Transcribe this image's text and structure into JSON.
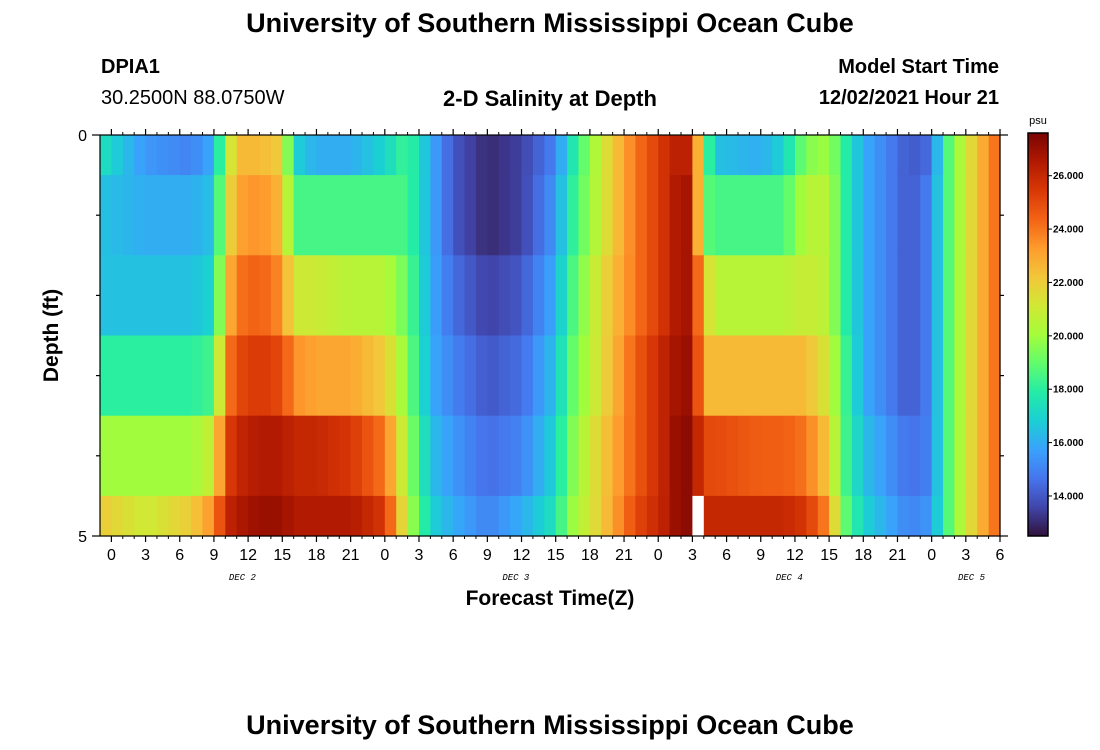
{
  "header": {
    "title": "University of Southern Mississippi Ocean Cube",
    "station": "DPIA1",
    "coords": "30.2500N  88.0750W",
    "subtitle": "2-D Salinity at Depth",
    "start_label": "Model Start Time",
    "start_value": "12/02/2021 Hour 21"
  },
  "footer": {
    "title": "University of Southern Mississippi Ocean Cube"
  },
  "chart_data": {
    "type": "heatmap",
    "title": "2-D Salinity at Depth",
    "xlabel": "Forecast Time(Z)",
    "ylabel": "Depth (ft)",
    "x_start_hour": -1,
    "x_end_hour": 78,
    "x_ticks": [
      "0",
      "3",
      "6",
      "9",
      "12",
      "15",
      "18",
      "21",
      "0",
      "3",
      "6",
      "9",
      "12",
      "15",
      "18",
      "21",
      "0",
      "3",
      "6",
      "9",
      "12",
      "15",
      "18",
      "21",
      "0",
      "3",
      "6"
    ],
    "day_labels": [
      {
        "text": "DEC 2",
        "hour": 11.5
      },
      {
        "text": "DEC 3",
        "hour": 35.5
      },
      {
        "text": "DEC 4",
        "hour": 59.5
      },
      {
        "text": "DEC 5",
        "hour": 75.5
      }
    ],
    "y_ticks": [
      "0",
      "5"
    ],
    "y_range_ft": [
      0,
      5
    ],
    "depth_bands_ft": [
      [
        0,
        0.5
      ],
      [
        0.5,
        1.5
      ],
      [
        1.5,
        2.5
      ],
      [
        2.5,
        3.5
      ],
      [
        3.5,
        4.5
      ],
      [
        4.5,
        5
      ]
    ],
    "colorbar": {
      "unit": "psu",
      "min": 12.5,
      "max": 27.6,
      "labels": [
        "26.000",
        "24.000",
        "22.000",
        "20.000",
        "18.000",
        "16.000",
        "14.000"
      ],
      "label_values": [
        26,
        24,
        22,
        20,
        18,
        16,
        14
      ]
    },
    "salinity_keyframes": [
      {
        "hour": -1,
        "levels": [
          17.5,
          16.5,
          16.5,
          18,
          20,
          22
        ]
      },
      {
        "hour": 3,
        "levels": [
          15.5,
          16,
          16.5,
          18,
          20,
          21
        ]
      },
      {
        "hour": 7,
        "levels": [
          15,
          16,
          16.5,
          18,
          20,
          22
        ]
      },
      {
        "hour": 9,
        "levels": [
          16,
          16.5,
          17,
          18.5,
          21,
          23.5
        ]
      },
      {
        "hour": 10,
        "levels": [
          20,
          21,
          22,
          23.5,
          25,
          26
        ]
      },
      {
        "hour": 11,
        "levels": [
          22.5,
          23,
          24,
          25,
          26,
          26.5
        ]
      },
      {
        "hour": 13,
        "levels": [
          22.5,
          23.5,
          24.5,
          25.5,
          26.5,
          27
        ]
      },
      {
        "hour": 15,
        "levels": [
          22,
          22.5,
          23.5,
          25,
          26.5,
          27
        ]
      },
      {
        "hour": 16,
        "levels": [
          17,
          18.5,
          21,
          23.5,
          26,
          26.5
        ]
      },
      {
        "hour": 18,
        "levels": [
          16,
          18.5,
          21,
          23,
          26,
          26.5
        ]
      },
      {
        "hour": 21,
        "levels": [
          16,
          18.5,
          20.5,
          23,
          25.5,
          26.5
        ]
      },
      {
        "hour": 24,
        "levels": [
          17,
          18.5,
          20.5,
          22,
          24,
          25.5
        ]
      },
      {
        "hour": 26,
        "levels": [
          18.5,
          18.5,
          19,
          19.5,
          20,
          20.5
        ]
      },
      {
        "hour": 28,
        "levels": [
          16,
          16,
          16,
          16,
          16.5,
          17
        ]
      },
      {
        "hour": 30,
        "levels": [
          14,
          14,
          14.5,
          15,
          15.5,
          16
        ]
      },
      {
        "hour": 33,
        "levels": [
          13,
          13,
          13.5,
          14,
          14.5,
          15
        ]
      },
      {
        "hour": 36,
        "levels": [
          13.5,
          13.5,
          14,
          14.5,
          15,
          16
        ]
      },
      {
        "hour": 39,
        "levels": [
          15,
          15.5,
          16,
          16.5,
          17,
          17.5
        ]
      },
      {
        "hour": 40,
        "levels": [
          17,
          17.5,
          18,
          18.5,
          19,
          19.5
        ]
      },
      {
        "hour": 43,
        "levels": [
          21,
          21,
          21.5,
          21.5,
          22,
          22
        ]
      },
      {
        "hour": 46,
        "levels": [
          24,
          24,
          24,
          24.5,
          24.5,
          25
        ]
      },
      {
        "hour": 49,
        "levels": [
          26,
          26,
          26,
          26.5,
          26.5,
          26.5
        ]
      },
      {
        "hour": 50,
        "levels": [
          26.5,
          27,
          27,
          27,
          27.5,
          27.5
        ]
      },
      {
        "hour": 51,
        "levels": [
          26,
          26.5,
          26.5,
          27,
          27,
          27
        ]
      },
      {
        "hour": 52,
        "levels": [
          19.5,
          19,
          22,
          22.5,
          25,
          26
        ]
      },
      {
        "hour": 53,
        "levels": [
          16.5,
          18.5,
          20.5,
          22.5,
          25,
          26
        ]
      },
      {
        "hour": 57,
        "levels": [
          16,
          18.5,
          20.5,
          22.5,
          24.5,
          26
        ]
      },
      {
        "hour": 59,
        "levels": [
          17,
          18.5,
          20.5,
          22.5,
          24.5,
          26
        ]
      },
      {
        "hour": 61,
        "levels": [
          19.5,
          20.5,
          21,
          22.5,
          24,
          25.5
        ]
      },
      {
        "hour": 63,
        "levels": [
          20,
          20.5,
          20.5,
          21,
          22,
          23.5
        ]
      },
      {
        "hour": 64,
        "levels": [
          18.5,
          18.5,
          18.5,
          19,
          19,
          19.5
        ]
      },
      {
        "hour": 66,
        "levels": [
          16,
          16,
          16,
          16,
          16.5,
          17
        ]
      },
      {
        "hour": 70,
        "levels": [
          14,
          14,
          14,
          14,
          14.5,
          15
        ]
      },
      {
        "hour": 72,
        "levels": [
          14.5,
          15,
          15,
          15,
          15,
          15.5
        ]
      },
      {
        "hour": 73,
        "levels": [
          18,
          18,
          18,
          18,
          18,
          18
        ]
      },
      {
        "hour": 75,
        "levels": [
          21,
          21,
          21,
          21,
          21,
          21
        ]
      },
      {
        "hour": 77,
        "levels": [
          23.5,
          23.5,
          23.5,
          23.5,
          23.5,
          23.5
        ]
      },
      {
        "hour": 78,
        "levels": [
          24.5,
          24.5,
          24.5,
          24.5,
          24.5,
          24.5
        ]
      }
    ],
    "missing_data_cell": {
      "hour": 51,
      "band": 5
    }
  },
  "colors": {
    "colormap": [
      "#30123b",
      "#4145ab",
      "#4675ed",
      "#39a2fc",
      "#1bcfd4",
      "#24eca6",
      "#61fc6c",
      "#a4fc3b",
      "#d1e834",
      "#f3c63a",
      "#fe9b2d",
      "#f36315",
      "#d93806",
      "#b11901",
      "#7a0402"
    ]
  }
}
